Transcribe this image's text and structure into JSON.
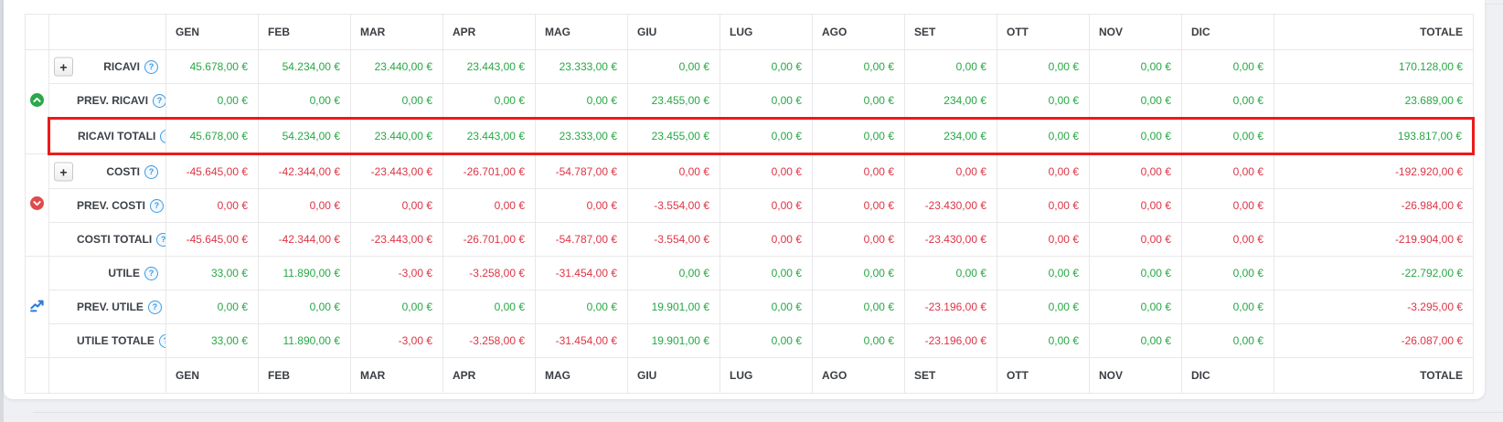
{
  "colors": {
    "positive": "#28a745",
    "negative": "#dc3545",
    "highlight": "#ed1a1a",
    "accent-blue": "#3d9be0",
    "icon-green": "#2ba84a",
    "icon-red": "#e04b4a",
    "icon-blue": "#2e7cd6"
  },
  "icons": {
    "plus_glyph": "+",
    "help_glyph": "?"
  },
  "table": {
    "columns": [
      "GEN",
      "FEB",
      "MAR",
      "APR",
      "MAG",
      "GIU",
      "LUG",
      "AGO",
      "SET",
      "OTT",
      "NOV",
      "DIC",
      "TOTALE"
    ],
    "groups": [
      {
        "start": 0,
        "span": 3,
        "name": "ricavi-group-cell",
        "icon": "chevron-up-circle-icon"
      },
      {
        "start": 3,
        "span": 3,
        "name": "costi-group-cell",
        "icon": "chevron-down-circle-icon"
      },
      {
        "start": 6,
        "span": 3,
        "name": "utile-group-cell",
        "icon": "chart-line-icon"
      }
    ],
    "rows": [
      {
        "label": "RICAVI",
        "plus": true,
        "highlighted": false,
        "values": [
          "45.678,00 €",
          "54.234,00 €",
          "23.440,00 €",
          "23.443,00 €",
          "23.333,00 €",
          "0,00 €",
          "0,00 €",
          "0,00 €",
          "0,00 €",
          "0,00 €",
          "0,00 €",
          "0,00 €",
          "170.128,00 €"
        ],
        "c": [
          "g",
          "g",
          "g",
          "g",
          "g",
          "g",
          "g",
          "g",
          "g",
          "g",
          "g",
          "g",
          "g"
        ]
      },
      {
        "label": "PREV. RICAVI",
        "plus": false,
        "highlighted": false,
        "values": [
          "0,00 €",
          "0,00 €",
          "0,00 €",
          "0,00 €",
          "0,00 €",
          "23.455,00 €",
          "0,00 €",
          "0,00 €",
          "234,00 €",
          "0,00 €",
          "0,00 €",
          "0,00 €",
          "23.689,00 €"
        ],
        "c": [
          "g",
          "g",
          "g",
          "g",
          "g",
          "g",
          "g",
          "g",
          "g",
          "g",
          "g",
          "g",
          "g"
        ]
      },
      {
        "label": "RICAVI TOTALI",
        "plus": false,
        "highlighted": true,
        "values": [
          "45.678,00 €",
          "54.234,00 €",
          "23.440,00 €",
          "23.443,00 €",
          "23.333,00 €",
          "23.455,00 €",
          "0,00 €",
          "0,00 €",
          "234,00 €",
          "0,00 €",
          "0,00 €",
          "0,00 €",
          "193.817,00 €"
        ],
        "c": [
          "g",
          "g",
          "g",
          "g",
          "g",
          "g",
          "g",
          "g",
          "g",
          "g",
          "g",
          "g",
          "g"
        ]
      },
      {
        "label": "COSTI",
        "plus": true,
        "highlighted": false,
        "values": [
          "-45.645,00 €",
          "-42.344,00 €",
          "-23.443,00 €",
          "-26.701,00 €",
          "-54.787,00 €",
          "0,00 €",
          "0,00 €",
          "0,00 €",
          "0,00 €",
          "0,00 €",
          "0,00 €",
          "0,00 €",
          "-192.920,00 €"
        ],
        "c": [
          "r",
          "r",
          "r",
          "r",
          "r",
          "r",
          "r",
          "r",
          "r",
          "r",
          "r",
          "r",
          "r"
        ]
      },
      {
        "label": "PREV. COSTI",
        "plus": false,
        "highlighted": false,
        "values": [
          "0,00 €",
          "0,00 €",
          "0,00 €",
          "0,00 €",
          "0,00 €",
          "-3.554,00 €",
          "0,00 €",
          "0,00 €",
          "-23.430,00 €",
          "0,00 €",
          "0,00 €",
          "0,00 €",
          "-26.984,00 €"
        ],
        "c": [
          "r",
          "r",
          "r",
          "r",
          "r",
          "r",
          "r",
          "r",
          "r",
          "r",
          "r",
          "r",
          "r"
        ]
      },
      {
        "label": "COSTI TOTALI",
        "plus": false,
        "highlighted": false,
        "values": [
          "-45.645,00 €",
          "-42.344,00 €",
          "-23.443,00 €",
          "-26.701,00 €",
          "-54.787,00 €",
          "-3.554,00 €",
          "0,00 €",
          "0,00 €",
          "-23.430,00 €",
          "0,00 €",
          "0,00 €",
          "0,00 €",
          "-219.904,00 €"
        ],
        "c": [
          "r",
          "r",
          "r",
          "r",
          "r",
          "r",
          "r",
          "r",
          "r",
          "r",
          "r",
          "r",
          "r"
        ]
      },
      {
        "label": "UTILE",
        "plus": false,
        "highlighted": false,
        "values": [
          "33,00 €",
          "11.890,00 €",
          "-3,00 €",
          "-3.258,00 €",
          "-31.454,00 €",
          "0,00 €",
          "0,00 €",
          "0,00 €",
          "0,00 €",
          "0,00 €",
          "0,00 €",
          "0,00 €",
          "-22.792,00 €"
        ],
        "c": [
          "g",
          "g",
          "r",
          "r",
          "r",
          "g",
          "g",
          "g",
          "g",
          "g",
          "g",
          "g",
          "g"
        ]
      },
      {
        "label": "PREV. UTILE",
        "plus": false,
        "highlighted": false,
        "values": [
          "0,00 €",
          "0,00 €",
          "0,00 €",
          "0,00 €",
          "0,00 €",
          "19.901,00 €",
          "0,00 €",
          "0,00 €",
          "-23.196,00 €",
          "0,00 €",
          "0,00 €",
          "0,00 €",
          "-3.295,00 €"
        ],
        "c": [
          "g",
          "g",
          "g",
          "g",
          "g",
          "g",
          "g",
          "g",
          "r",
          "g",
          "g",
          "g",
          "r"
        ]
      },
      {
        "label": "UTILE TOTALE",
        "plus": false,
        "highlighted": false,
        "values": [
          "33,00 €",
          "11.890,00 €",
          "-3,00 €",
          "-3.258,00 €",
          "-31.454,00 €",
          "19.901,00 €",
          "0,00 €",
          "0,00 €",
          "-23.196,00 €",
          "0,00 €",
          "0,00 €",
          "0,00 €",
          "-26.087,00 €"
        ],
        "c": [
          "g",
          "g",
          "r",
          "r",
          "r",
          "g",
          "g",
          "g",
          "r",
          "g",
          "g",
          "g",
          "r"
        ]
      }
    ]
  }
}
